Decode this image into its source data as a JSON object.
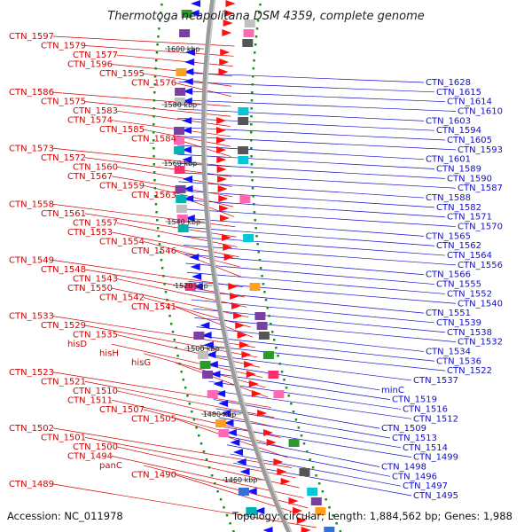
{
  "title": "Thermotoga neapolitana DSM 4359, complete genome",
  "footer": {
    "accession": "Accession: NC_011978",
    "summary": "Topology: circular; Length: 1,884,562 bp; Genes: 1,988"
  },
  "colors": {
    "backbone": "#8c8c8c",
    "forward_label": "#d40000",
    "reverse_label": "#1010c8",
    "gc_dots": "#1a8a1a"
  },
  "scale_labels": [
    "1600 kbp",
    "1580 kbp",
    "1560 kbp",
    "1540 kbp",
    "1520 kbp",
    "1500 kbp",
    "1480 kbp",
    "1460 kbp"
  ],
  "forward_genes": [
    "CTN_1597",
    "CTN_1579",
    "CTN_1577",
    "CTN_1596",
    "CTN_1595",
    "CTN_1576",
    "CTN_1586",
    "CTN_1575",
    "CTN_1583",
    "CTN_1574",
    "CTN_1585",
    "CTN_1584",
    "CTN_1573",
    "CTN_1572",
    "CTN_1560",
    "CTN_1567",
    "CTN_1559",
    "CTN_1563",
    "CTN_1558",
    "CTN_1561",
    "CTN_1557",
    "CTN_1553",
    "CTN_1554",
    "CTN_1546",
    "CTN_1549",
    "CTN_1548",
    "CTN_1543",
    "CTN_1550",
    "CTN_1542",
    "CTN_1541",
    "CTN_1533",
    "CTN_1529",
    "CTN_1535",
    "hisD",
    "hisH",
    "hisG",
    "CTN_1523",
    "CTN_1521",
    "CTN_1510",
    "CTN_1511",
    "CTN_1507",
    "CTN_1505",
    "CTN_1502",
    "CTN_1501",
    "CTN_1500",
    "CTN_1494",
    "panC",
    "CTN_1490",
    "CTN_1489"
  ],
  "reverse_genes": [
    "CTN_1628",
    "CTN_1615",
    "CTN_1614",
    "CTN_1610",
    "CTN_1603",
    "CTN_1594",
    "CTN_1605",
    "CTN_1593",
    "CTN_1601",
    "CTN_1589",
    "CTN_1590",
    "CTN_1587",
    "CTN_1588",
    "CTN_1582",
    "CTN_1571",
    "CTN_1570",
    "CTN_1565",
    "CTN_1562",
    "CTN_1564",
    "CTN_1556",
    "CTN_1566",
    "CTN_1555",
    "CTN_1552",
    "CTN_1540",
    "CTN_1551",
    "CTN_1539",
    "CTN_1538",
    "CTN_1532",
    "CTN_1534",
    "CTN_1536",
    "CTN_1522",
    "CTN_1537",
    "minC",
    "CTN_1519",
    "CTN_1516",
    "CTN_1512",
    "CTN_1509",
    "CTN_1513",
    "CTN_1514",
    "CTN_1499",
    "CTN_1498",
    "CTN_1496",
    "CTN_1497",
    "CTN_1495"
  ]
}
